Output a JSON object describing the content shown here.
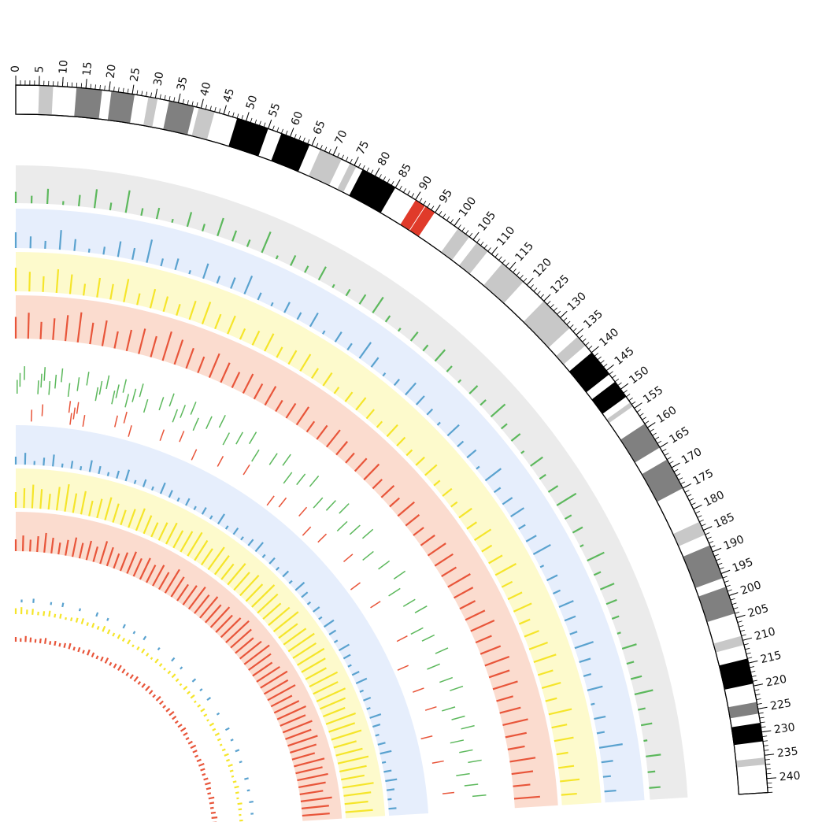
{
  "chart_data": {
    "type": "circos",
    "xlim": [
      0,
      243
    ],
    "xticks": [
      0,
      5,
      10,
      15,
      20,
      25,
      30,
      35,
      40,
      45,
      50,
      55,
      60,
      65,
      70,
      75,
      80,
      85,
      90,
      95,
      100,
      105,
      110,
      115,
      120,
      125,
      130,
      135,
      140,
      145,
      150,
      155,
      160,
      165,
      170,
      175,
      180,
      185,
      190,
      195,
      200,
      205,
      210,
      215,
      220,
      225,
      230,
      235,
      240
    ],
    "minor_tick_step": 1,
    "bands": [
      {
        "start": 5,
        "end": 8,
        "color": "#c8c8c8"
      },
      {
        "start": 13,
        "end": 18.5,
        "color": "#808080"
      },
      {
        "start": 20.5,
        "end": 25.5,
        "color": "#808080"
      },
      {
        "start": 28.5,
        "end": 30.5,
        "color": "#c8c8c8"
      },
      {
        "start": 33,
        "end": 38.5,
        "color": "#808080"
      },
      {
        "start": 39.5,
        "end": 43,
        "color": "#c8c8c8"
      },
      {
        "start": 48,
        "end": 55,
        "color": "#000000"
      },
      {
        "start": 58,
        "end": 64.5,
        "color": "#000000"
      },
      {
        "start": 67,
        "end": 72,
        "color": "#c8c8c8"
      },
      {
        "start": 74,
        "end": 75.5,
        "color": "#c8c8c8"
      },
      {
        "start": 77,
        "end": 85,
        "color": "#000000"
      },
      {
        "start": 90,
        "end": 92.5,
        "color": "#e03a2a"
      },
      {
        "start": 92.5,
        "end": 95,
        "color": "#e03a2a"
      },
      {
        "start": 101,
        "end": 104,
        "color": "#c8c8c8"
      },
      {
        "start": 106,
        "end": 109,
        "color": "#c8c8c8"
      },
      {
        "start": 113,
        "end": 119,
        "color": "#c8c8c8"
      },
      {
        "start": 125,
        "end": 133,
        "color": "#c8c8c8"
      },
      {
        "start": 135.5,
        "end": 138,
        "color": "#c8c8c8"
      },
      {
        "start": 140,
        "end": 146,
        "color": "#000000"
      },
      {
        "start": 148,
        "end": 152,
        "color": "#000000"
      },
      {
        "start": 153.5,
        "end": 154.5,
        "color": "#c8c8c8"
      },
      {
        "start": 159,
        "end": 165,
        "color": "#808080"
      },
      {
        "start": 168,
        "end": 175,
        "color": "#808080"
      },
      {
        "start": 183,
        "end": 186,
        "color": "#c8c8c8"
      },
      {
        "start": 188.5,
        "end": 196,
        "color": "#808080"
      },
      {
        "start": 198,
        "end": 204,
        "color": "#808080"
      },
      {
        "start": 209,
        "end": 211,
        "color": "#c8c8c8"
      },
      {
        "start": 214,
        "end": 219.5,
        "color": "#000000"
      },
      {
        "start": 223.5,
        "end": 226,
        "color": "#808080"
      },
      {
        "start": 228,
        "end": 232,
        "color": "#000000"
      },
      {
        "start": 235.5,
        "end": 237,
        "color": "#c8c8c8"
      }
    ],
    "value_range": [
      0,
      10
    ],
    "positions": [
      0,
      4,
      8,
      12,
      16,
      20,
      24,
      28,
      32,
      36,
      40,
      44,
      48,
      52,
      56,
      60,
      64,
      68,
      72,
      76,
      80,
      84,
      88,
      92,
      96,
      100,
      104,
      108,
      112,
      116,
      120,
      124,
      128,
      132,
      136,
      140,
      144,
      148,
      152,
      156,
      160,
      164,
      168,
      172,
      176,
      180,
      184,
      188,
      192,
      196,
      200,
      204,
      208,
      212,
      216,
      220,
      224,
      228,
      232,
      236,
      240
    ],
    "tracks": [
      {
        "kind": "histogram",
        "color": "#5cb85c",
        "background": "#ebebeb",
        "values": [
          3,
          2,
          4,
          1,
          3,
          5,
          2,
          6,
          2,
          3,
          1,
          4,
          2,
          5,
          3,
          2,
          6,
          1,
          3,
          2,
          4,
          1,
          2,
          3,
          5,
          2,
          1,
          3,
          2,
          4,
          2,
          1,
          3,
          2,
          5,
          2,
          3,
          1,
          4,
          2,
          3,
          6,
          2,
          3,
          1,
          5,
          2,
          4,
          3,
          2,
          1,
          4,
          2,
          3,
          5,
          2,
          3,
          1,
          4,
          2,
          3
        ]
      },
      {
        "kind": "histogram",
        "color": "#5aa2cf",
        "background": "#e6eefc",
        "values": [
          4,
          3,
          2,
          5,
          3,
          1,
          2,
          4,
          3,
          6,
          2,
          3,
          1,
          4,
          2,
          3,
          5,
          2,
          1,
          3,
          2,
          4,
          1,
          3,
          2,
          5,
          3,
          1,
          2,
          4,
          3,
          2,
          1,
          4,
          2,
          3,
          1,
          5,
          2,
          3,
          4,
          2,
          3,
          5,
          1,
          3,
          2,
          4,
          3,
          2,
          5,
          3,
          2,
          4,
          1,
          3,
          2,
          6,
          3,
          2,
          3
        ]
      },
      {
        "kind": "histogram",
        "color": "#f5e52a",
        "background": "#fdfacc",
        "values": [
          6,
          5,
          4,
          6,
          5,
          3,
          5,
          4,
          6,
          3,
          5,
          4,
          3,
          5,
          6,
          4,
          5,
          3,
          4,
          5,
          3,
          4,
          5,
          3,
          4,
          2,
          3,
          4,
          3,
          2,
          4,
          3,
          2,
          3,
          4,
          2,
          3,
          2,
          4,
          3,
          5,
          3,
          4,
          6,
          3,
          4,
          5,
          3,
          4,
          5,
          6,
          4,
          5,
          3,
          6,
          4,
          5,
          3,
          4,
          5,
          4
        ]
      },
      {
        "kind": "histogram",
        "color": "#e8553a",
        "background": "#fbdccf",
        "values": [
          5,
          6,
          4,
          5,
          6,
          7,
          5,
          6,
          4,
          5,
          6,
          5,
          7,
          6,
          5,
          4,
          6,
          5,
          4,
          5,
          4,
          5,
          3,
          4,
          5,
          3,
          4,
          5,
          4,
          3,
          4,
          5,
          3,
          4,
          3,
          5,
          4,
          3,
          4,
          5,
          5,
          4,
          6,
          5,
          4,
          5,
          6,
          4,
          5,
          6,
          5,
          6,
          4,
          5,
          6,
          5,
          4,
          6,
          5,
          4,
          6
        ]
      },
      {
        "kind": "tiles",
        "color": "#5cb85c",
        "positions": [
          0.5,
          1.5,
          3,
          8,
          9,
          10,
          12,
          14,
          16,
          19,
          22,
          25,
          29,
          30,
          32,
          35,
          36,
          38,
          40,
          42,
          44,
          47,
          52,
          55,
          58,
          60,
          63,
          66,
          70,
          74,
          78,
          82,
          86,
          90,
          96,
          100,
          104,
          108,
          112,
          118,
          122,
          126,
          130,
          134,
          138,
          144,
          150,
          156,
          160,
          166,
          170,
          176,
          180,
          186,
          190,
          196,
          200,
          206,
          210,
          214,
          218,
          222,
          226,
          230,
          234,
          238
        ]
      },
      {
        "kind": "tiles",
        "color": "#e8553a",
        "positions": [
          6,
          10,
          20,
          21,
          22,
          23,
          26,
          38,
          41,
          44,
          56,
          63,
          70,
          80,
          90,
          104,
          108,
          116,
          122,
          128,
          140,
          150,
          160,
          176,
          186,
          196,
          204,
          214,
          224,
          236
        ]
      },
      {
        "kind": "histogram",
        "color": "#5aa2cf",
        "background": "#e6eefc",
        "values": [
          2,
          3,
          1,
          2,
          3,
          1,
          2,
          1,
          3,
          2,
          1,
          2,
          3,
          1,
          2,
          1,
          3,
          2,
          1,
          2,
          1,
          2,
          1,
          3,
          1,
          2,
          1,
          2,
          3,
          1,
          2,
          1,
          2,
          1,
          3,
          2,
          1,
          2,
          1,
          3,
          2,
          1,
          3,
          2,
          1,
          2,
          3,
          1,
          2,
          1,
          3,
          2,
          1,
          2,
          3,
          1,
          2,
          3,
          2,
          1,
          2
        ]
      },
      {
        "kind": "histogram",
        "color": "#f5e52a",
        "background": "#fdfacc",
        "values": [
          4,
          5,
          6,
          5,
          4,
          6,
          7,
          5,
          6,
          4,
          5,
          6,
          5,
          4,
          5,
          6,
          5,
          4,
          5,
          6,
          5,
          6,
          7,
          6,
          5,
          7,
          6,
          5,
          7,
          6,
          7,
          6,
          8,
          7,
          6,
          7,
          8,
          6,
          7,
          8,
          7,
          8,
          7,
          6,
          8,
          7,
          8,
          7,
          6,
          8,
          7,
          8,
          6,
          7,
          8,
          7,
          6,
          8,
          7,
          6,
          7
        ]
      },
      {
        "kind": "histogram",
        "color": "#e8553a",
        "background": "#fbdccf",
        "values": [
          3,
          4,
          3,
          4,
          5,
          4,
          3,
          4,
          5,
          4,
          5,
          4,
          6,
          5,
          4,
          5,
          6,
          5,
          6,
          5,
          6,
          5,
          7,
          6,
          5,
          6,
          7,
          6,
          7,
          6,
          7,
          6,
          7,
          8,
          7,
          6,
          7,
          8,
          7,
          6,
          7,
          8,
          7,
          8,
          6,
          7,
          8,
          7,
          8,
          7,
          8,
          7,
          6,
          8,
          7,
          8,
          7,
          6,
          8,
          7,
          7
        ]
      },
      {
        "kind": "histogram",
        "color": "#f5e52a",
        "values": [
          5,
          6,
          4,
          5,
          3,
          4,
          5,
          3,
          4,
          2,
          3,
          4,
          5,
          3,
          4,
          3,
          5,
          4,
          3,
          4,
          3,
          4,
          2,
          3,
          4,
          3,
          2,
          4,
          3,
          2,
          3,
          4,
          3,
          2,
          4,
          3,
          4,
          2,
          3,
          4,
          3,
          2,
          4,
          3,
          4,
          3,
          2,
          3,
          4,
          3,
          4,
          3,
          2,
          3,
          4,
          3,
          2,
          4,
          3,
          2,
          3
        ]
      },
      {
        "kind": "histogram",
        "color": "#5aa2cf",
        "values": [
          0,
          2,
          0,
          3,
          0,
          0,
          2,
          0,
          3,
          0,
          0,
          2,
          0,
          0,
          3,
          0,
          2,
          0,
          0,
          3,
          0,
          2,
          0,
          3,
          0,
          0,
          2,
          0,
          0,
          3,
          0,
          2,
          0,
          0,
          3,
          0,
          2,
          0,
          3,
          0,
          0,
          2,
          0,
          0,
          3,
          0,
          2,
          0,
          3,
          0,
          2,
          0,
          0,
          3,
          0,
          2,
          0,
          3,
          0,
          2,
          0
        ]
      },
      {
        "kind": "histogram",
        "color": "#e8553a",
        "values": [
          4,
          3,
          5,
          4,
          3,
          4,
          5,
          3,
          4,
          3,
          4,
          5,
          3,
          4,
          3,
          5,
          4,
          3,
          4,
          5,
          3,
          4,
          5,
          4,
          3,
          4,
          5,
          3,
          4,
          5,
          4,
          3,
          5,
          4,
          3,
          4,
          5,
          4,
          3,
          4,
          5,
          4,
          3,
          4,
          5,
          4,
          3,
          4,
          5,
          4,
          3,
          4,
          5,
          4,
          3,
          5,
          4,
          3,
          4,
          5,
          4
        ]
      }
    ]
  }
}
